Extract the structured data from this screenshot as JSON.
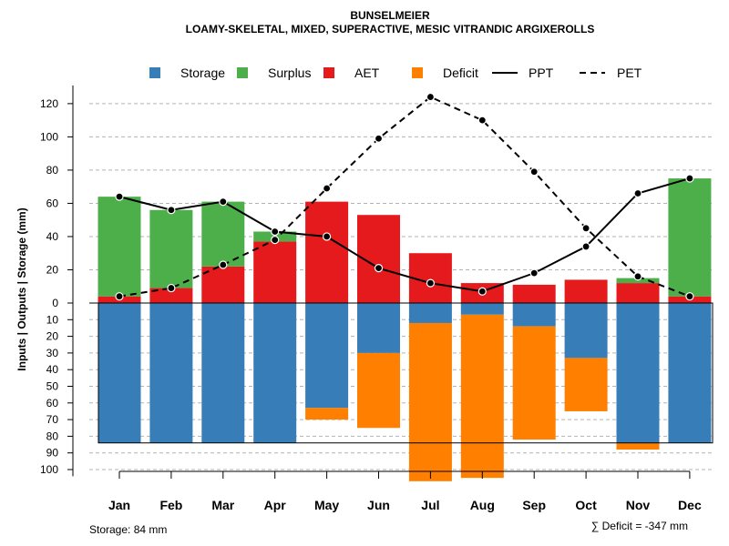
{
  "chart_data": {
    "type": "bar",
    "title": "BUNSELMEIER",
    "subtitle": "LOAMY-SKELETAL, MIXED, SUPERACTIVE, MESIC VITRANDIC ARGIXEROLLS",
    "ylabel": "Inputs | Outputs | Storage    (mm)",
    "categories": [
      "Jan",
      "Feb",
      "Mar",
      "Apr",
      "May",
      "Jun",
      "Jul",
      "Aug",
      "Sep",
      "Oct",
      "Nov",
      "Dec"
    ],
    "ylim_top": [
      0,
      130
    ],
    "yticks_top": [
      0,
      20,
      40,
      60,
      80,
      100,
      120
    ],
    "ylim_bottom": [
      0,
      105
    ],
    "yticks_bottom": [
      10,
      20,
      30,
      40,
      50,
      60,
      70,
      80,
      90,
      100
    ],
    "legend": [
      "Storage",
      "Surplus",
      "AET",
      "Deficit",
      "PPT",
      "PET"
    ],
    "colors": {
      "storage": "#377EB8",
      "surplus": "#4DAF4A",
      "aet": "#E41A1C",
      "deficit": "#FF7F00",
      "grid": "#b3b3b3"
    },
    "series": [
      {
        "name": "AET",
        "values": [
          4,
          9,
          22,
          37,
          61,
          53,
          30,
          12,
          11,
          14,
          12,
          4
        ]
      },
      {
        "name": "Surplus",
        "values": [
          60,
          47,
          39,
          6,
          0,
          0,
          0,
          0,
          0,
          0,
          3,
          71
        ]
      },
      {
        "name": "Storage",
        "values": [
          84,
          84,
          84,
          84,
          63,
          30,
          12,
          7,
          14,
          33,
          84,
          84
        ]
      },
      {
        "name": "Deficit",
        "values": [
          0,
          0,
          0,
          0,
          7,
          45,
          95,
          98,
          68,
          32,
          4,
          0
        ]
      },
      {
        "name": "PPT",
        "values": [
          64,
          56,
          61,
          43,
          40,
          21,
          12,
          7,
          18,
          34,
          66,
          75
        ]
      },
      {
        "name": "PET",
        "values": [
          4,
          9,
          23,
          38,
          69,
          99,
          124,
          110,
          79,
          45,
          16,
          4
        ]
      }
    ],
    "storage_capacity": 84,
    "footer_left": "Storage: 84 mm",
    "footer_right": "∑ Deficit = -347 mm"
  }
}
